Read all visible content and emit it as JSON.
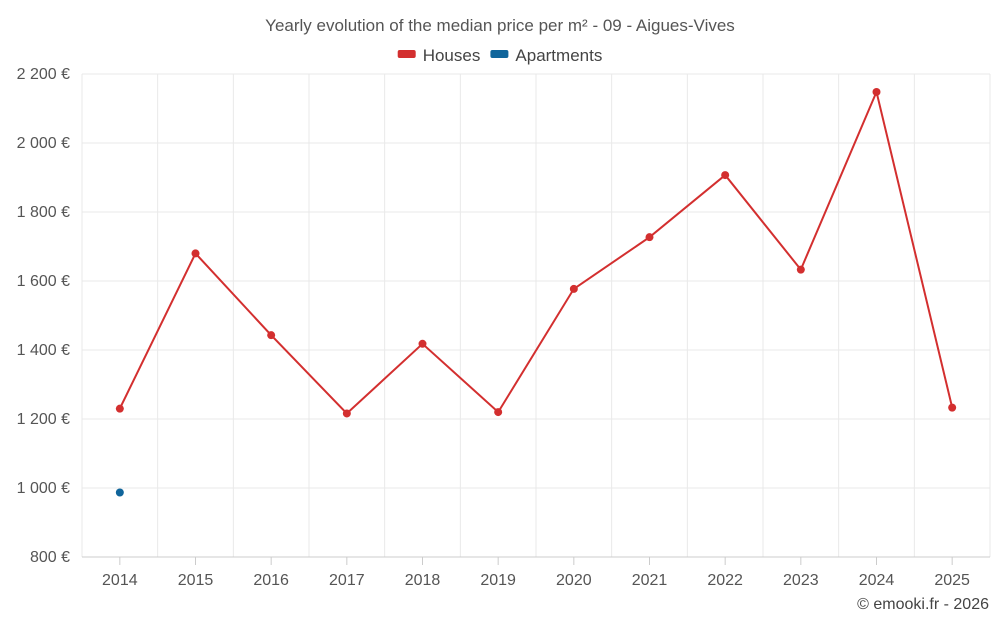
{
  "chart_data": {
    "type": "line",
    "title": "Yearly evolution of the median price per m² - 09 - Aigues-Vives",
    "categories": [
      "2014",
      "2015",
      "2016",
      "2017",
      "2018",
      "2019",
      "2020",
      "2021",
      "2022",
      "2023",
      "2024",
      "2025"
    ],
    "series": [
      {
        "name": "Houses",
        "color": "#d32f2f",
        "values": [
          1230,
          1680,
          1443,
          1216,
          1418,
          1220,
          1577,
          1727,
          1907,
          1633,
          2148,
          1233
        ]
      },
      {
        "name": "Apartments",
        "color": "#10659b",
        "values": [
          987,
          null,
          null,
          null,
          null,
          null,
          null,
          null,
          null,
          null,
          null,
          null
        ]
      }
    ],
    "ylim": [
      800,
      2200
    ],
    "yticks": [
      800,
      1000,
      1200,
      1400,
      1600,
      1800,
      2000,
      2200
    ],
    "ytick_labels": [
      "800 €",
      "1 000 €",
      "1 200 €",
      "1 400 €",
      "1 600 €",
      "1 800 €",
      "2 000 €",
      "2 200 €"
    ],
    "xlabel": "",
    "ylabel": "",
    "grid": true,
    "legend_position": "top-center"
  },
  "credit": "© emooki.fr - 2026"
}
